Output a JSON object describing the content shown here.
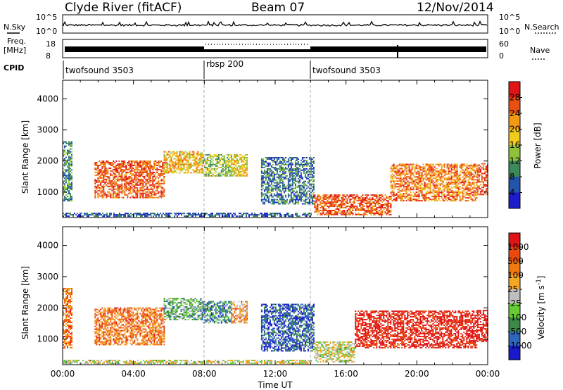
{
  "header": {
    "station": "Clyde River (fitACF)",
    "beam": "Beam 07",
    "date": "12/Nov/2014"
  },
  "noise_panel": {
    "left_label": "N.Sky",
    "right_label": "N.Search",
    "left_ticks": [
      "10^5",
      "10^0"
    ],
    "right_ticks": [
      "10^5",
      "10^0"
    ]
  },
  "freq_panel": {
    "left_label_1": "Freq.",
    "left_label_2": "[MHz]",
    "left_ticks": [
      "18",
      "8"
    ],
    "right_label": "Nave",
    "right_ticks": [
      "60",
      "0"
    ]
  },
  "cpid_panel": {
    "label": "CPID",
    "segments": [
      {
        "label": "twofsound 3503",
        "start_hour": 0
      },
      {
        "label": "rbsp 200",
        "start_hour": 8
      },
      {
        "label": "twofsound 3503",
        "start_hour": 14
      }
    ]
  },
  "x_axis": {
    "label": "Time UT",
    "ticks": [
      "00:00",
      "04:00",
      "08:00",
      "12:00",
      "16:00",
      "20:00",
      "00:00"
    ]
  },
  "power_panel": {
    "ylabel": "Slant Range [km]",
    "yticks": [
      "1000",
      "2000",
      "3000",
      "4000"
    ],
    "colorbar_label": "Power [dB]",
    "colorbar_ticks": [
      "4",
      "8",
      "12",
      "16",
      "20",
      "24",
      "28"
    ],
    "colors": [
      "#1c1ccc",
      "#2255aa",
      "#3b8a5a",
      "#8fc23a",
      "#f2cc1a",
      "#f29a14",
      "#ea5010",
      "#e01414"
    ]
  },
  "velocity_panel": {
    "ylabel": "Slant Range [km]",
    "yticks": [
      "1000",
      "2000",
      "3000",
      "4000"
    ],
    "colorbar_label": "Velocity [m s",
    "colorbar_sup": "-1",
    "colorbar_label_end": "]",
    "colorbar_ticks": [
      "1000",
      "500",
      "100",
      "25",
      "-25",
      "-100",
      "-500",
      "-1000"
    ],
    "colors": [
      "#1a1acc",
      "#2e66bb",
      "#3a8a4a",
      "#66cc33",
      "#bfbfbf",
      "#f5a623",
      "#f07a10",
      "#ea4a10",
      "#e01414"
    ]
  },
  "chart_data": [
    {
      "type": "heatmap",
      "title": "Power",
      "xlabel": "Time UT",
      "ylabel": "Slant Range [km]",
      "xlim": [
        0,
        24
      ],
      "ylim": [
        180,
        4600
      ],
      "colorbar": {
        "label": "Power [dB]",
        "range": [
          0,
          32
        ]
      },
      "regions": [
        {
          "t0": 0.0,
          "t1": 0.5,
          "r0": 700,
          "r1": 2600,
          "value": 10
        },
        {
          "t0": 1.8,
          "t1": 5.7,
          "r0": 800,
          "r1": 2000,
          "value": 26
        },
        {
          "t0": 5.7,
          "t1": 7.9,
          "r0": 1600,
          "r1": 2300,
          "value": 20
        },
        {
          "t0": 7.9,
          "t1": 9.5,
          "r0": 1500,
          "r1": 2200,
          "value": 14
        },
        {
          "t0": 9.5,
          "t1": 10.4,
          "r0": 1500,
          "r1": 2200,
          "value": 18
        },
        {
          "t0": 11.2,
          "t1": 14.2,
          "r0": 600,
          "r1": 2100,
          "value": 8
        },
        {
          "t0": 14.2,
          "t1": 18.5,
          "r0": 250,
          "r1": 900,
          "value": 26
        },
        {
          "t0": 18.5,
          "t1": 23.4,
          "r0": 700,
          "r1": 1900,
          "value": 24
        },
        {
          "t0": 23.4,
          "t1": 24.0,
          "r0": 900,
          "r1": 1900,
          "value": 26
        },
        {
          "t0": 0.0,
          "t1": 14.0,
          "r0": 200,
          "r1": 300,
          "value": 6
        }
      ]
    },
    {
      "type": "heatmap",
      "title": "Velocity",
      "xlabel": "Time UT",
      "ylabel": "Slant Range [km]",
      "xlim": [
        0,
        24
      ],
      "ylim": [
        180,
        4600
      ],
      "colorbar": {
        "label": "Velocity [m s-1]",
        "range": [
          -1000,
          1000
        ]
      },
      "regions": [
        {
          "t0": 0.0,
          "t1": 0.5,
          "r0": 700,
          "r1": 2600,
          "value": 500
        },
        {
          "t0": 1.8,
          "t1": 5.7,
          "r0": 800,
          "r1": 2000,
          "value": 500
        },
        {
          "t0": 5.7,
          "t1": 7.9,
          "r0": 1600,
          "r1": 2300,
          "value": -300
        },
        {
          "t0": 7.9,
          "t1": 9.5,
          "r0": 1500,
          "r1": 2200,
          "value": -500
        },
        {
          "t0": 9.5,
          "t1": 10.4,
          "r0": 1500,
          "r1": 2200,
          "value": 300
        },
        {
          "t0": 11.2,
          "t1": 14.2,
          "r0": 600,
          "r1": 2100,
          "value": -700
        },
        {
          "t0": 14.2,
          "t1": 16.5,
          "r0": 250,
          "r1": 900,
          "value": 0
        },
        {
          "t0": 16.5,
          "t1": 23.4,
          "r0": 700,
          "r1": 1900,
          "value": 900
        },
        {
          "t0": 23.4,
          "t1": 24.0,
          "r0": 900,
          "r1": 1900,
          "value": 1000
        },
        {
          "t0": 0.0,
          "t1": 14.0,
          "r0": 200,
          "r1": 300,
          "value": 0
        }
      ]
    }
  ]
}
